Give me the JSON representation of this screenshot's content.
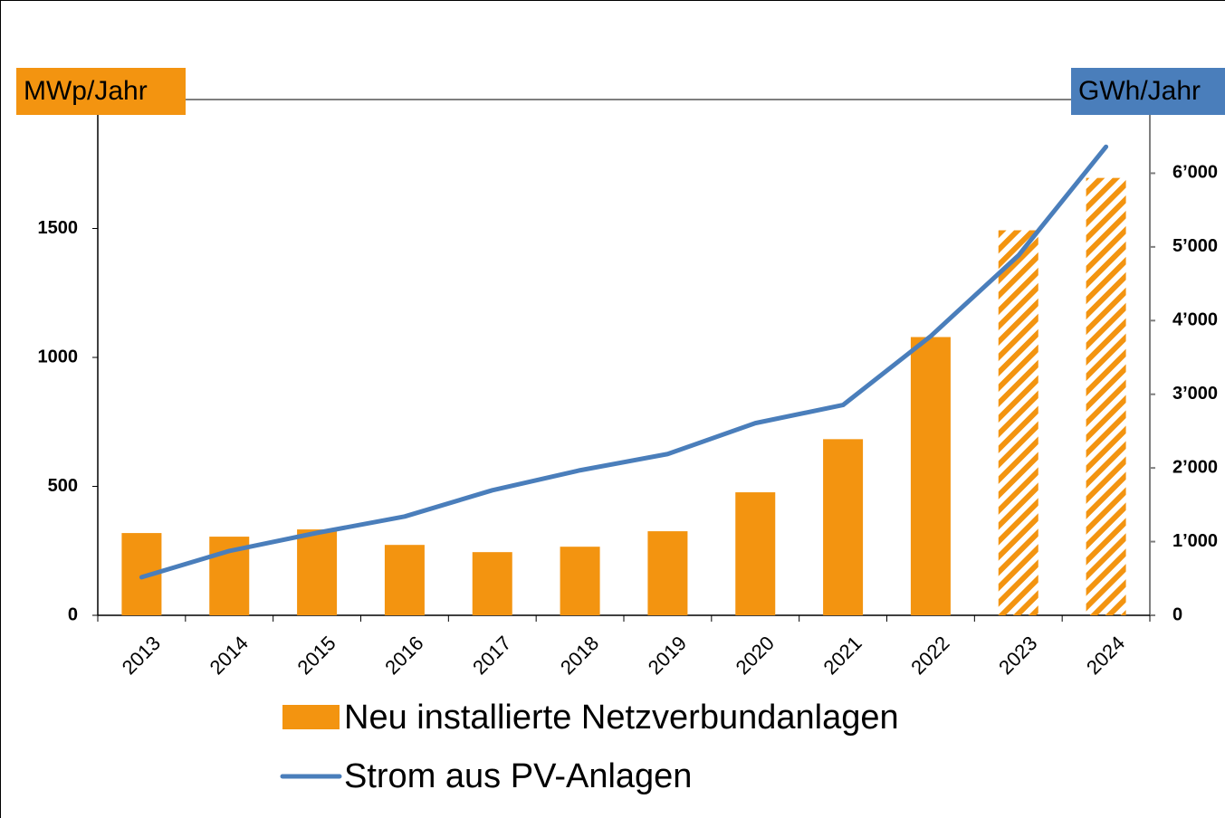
{
  "chart_data": {
    "type": "bar_line",
    "categories": [
      "2013",
      "2014",
      "2015",
      "2016",
      "2017",
      "2018",
      "2019",
      "2020",
      "2021",
      "2022",
      "2023",
      "2024"
    ],
    "y_axis_label": "MWp/Jahr",
    "y2_axis_label": "GWh/Jahr",
    "ylim": [
      0,
      2000
    ],
    "yticks": [
      0,
      500,
      1000,
      1500
    ],
    "y2lim": [
      0,
      7000
    ],
    "y2ticks": [
      0,
      {
        "value": 1000,
        "label": "1’000"
      },
      {
        "value": 2000,
        "label": "2’000"
      },
      {
        "value": 3000,
        "label": "3’000"
      },
      {
        "value": 4000,
        "label": "4’000"
      },
      {
        "value": 5000,
        "label": "5’000"
      },
      {
        "value": 6000,
        "label": "6’000"
      }
    ],
    "series": [
      {
        "name": "Neu installierte Netzverbundanlagen",
        "type": "bar",
        "color": "#f39410",
        "values": [
          319,
          305,
          333,
          273,
          245,
          266,
          326,
          477,
          683,
          1079,
          1493,
          1696
        ],
        "hatched": [
          false,
          false,
          false,
          false,
          false,
          false,
          false,
          false,
          false,
          false,
          true,
          true
        ]
      },
      {
        "name": "Strom aus PV-Anlagen",
        "type": "line",
        "axis": "y2",
        "color": "#4a7ebb",
        "values": [
          517,
          873,
          1119,
          1341,
          1697,
          1968,
          2189,
          2608,
          2854,
          3788,
          4883,
          6359
        ]
      }
    ]
  }
}
